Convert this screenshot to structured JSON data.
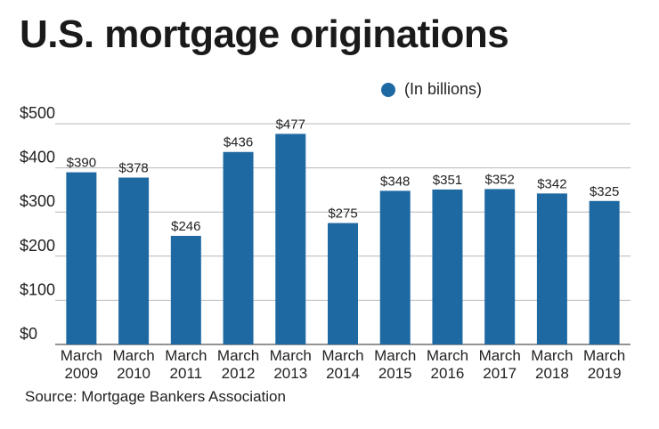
{
  "title": "U.S. mortgage originations",
  "source": "Source: Mortgage Bankers Association",
  "colors": {
    "bar": "#1f69a3",
    "grid": "#b8b8b8",
    "axis": "#555555"
  },
  "chart_data": {
    "type": "bar",
    "title": "U.S. mortgage originations",
    "xlabel": "",
    "ylabel": "",
    "ylim": [
      0,
      500
    ],
    "yticks": [
      0,
      100,
      200,
      300,
      400,
      500
    ],
    "ytick_labels": [
      "$0",
      "$100",
      "$200",
      "$300",
      "$400",
      "$500"
    ],
    "grid": true,
    "legend_position": "top-right",
    "categories": [
      [
        "March",
        "2009"
      ],
      [
        "March",
        "2010"
      ],
      [
        "March",
        "2011"
      ],
      [
        "March",
        "2012"
      ],
      [
        "March",
        "2013"
      ],
      [
        "March",
        "2014"
      ],
      [
        "March",
        "2015"
      ],
      [
        "March",
        "2016"
      ],
      [
        "March",
        "2017"
      ],
      [
        "March",
        "2018"
      ],
      [
        "March",
        "2019"
      ]
    ],
    "series": [
      {
        "name": "(In billions)",
        "values": [
          390,
          378,
          246,
          436,
          477,
          275,
          348,
          351,
          352,
          342,
          325
        ],
        "labels": [
          "$390",
          "$378",
          "$246",
          "$436",
          "$477",
          "$275",
          "$348",
          "$351",
          "$352",
          "$342",
          "$325"
        ]
      }
    ]
  }
}
